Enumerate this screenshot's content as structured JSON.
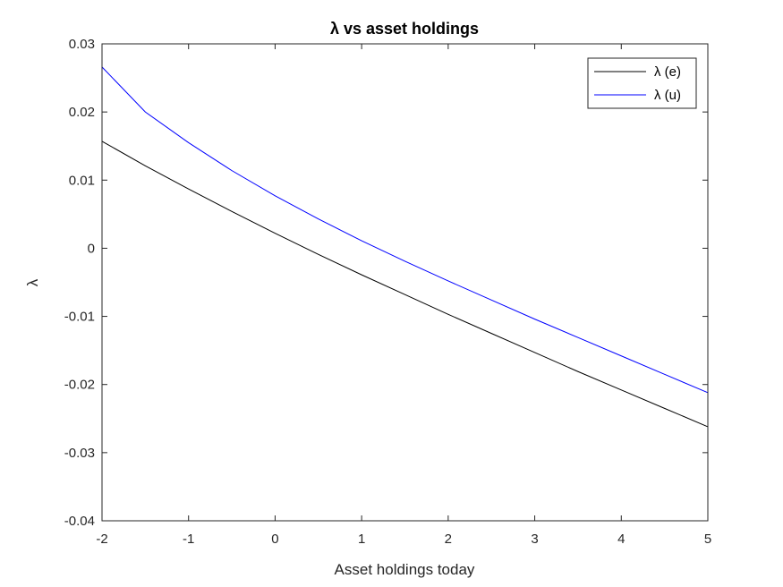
{
  "chart_data": {
    "type": "line",
    "title": "λ vs asset holdings",
    "xlabel": "Asset holdings today",
    "ylabel": "λ",
    "xlim": [
      -2,
      5
    ],
    "ylim": [
      -0.04,
      0.03
    ],
    "xticks": [
      -2,
      -1,
      0,
      1,
      2,
      3,
      4,
      5
    ],
    "xtick_labels": [
      "-2",
      "-1",
      "0",
      "1",
      "2",
      "3",
      "4",
      "5"
    ],
    "yticks": [
      -0.04,
      -0.03,
      -0.02,
      -0.01,
      0,
      0.01,
      0.02,
      0.03
    ],
    "ytick_labels": [
      "-0.04",
      "-0.03",
      "-0.02",
      "-0.01",
      "0",
      "0.01",
      "0.02",
      "0.03"
    ],
    "grid": false,
    "legend_position": "top-right",
    "x": [
      -2,
      -1.5,
      -1,
      -0.5,
      0,
      0.5,
      1,
      1.5,
      2,
      2.5,
      3,
      3.5,
      4,
      4.5,
      5
    ],
    "series": [
      {
        "name": "λ (e)",
        "color": "#000000",
        "values": [
          0.0157,
          0.0121,
          0.0087,
          0.0054,
          0.0022,
          -0.0009,
          -0.0039,
          -0.0068,
          -0.0097,
          -0.0125,
          -0.0153,
          -0.0181,
          -0.0208,
          -0.0235,
          -0.0262
        ]
      },
      {
        "name": "λ (u)",
        "color": "#0000ff",
        "values": [
          0.0266,
          0.02,
          0.0155,
          0.0114,
          0.0077,
          0.0043,
          0.0011,
          -0.0019,
          -0.0048,
          -0.0076,
          -0.0104,
          -0.0131,
          -0.0158,
          -0.0185,
          -0.0212
        ]
      }
    ]
  }
}
